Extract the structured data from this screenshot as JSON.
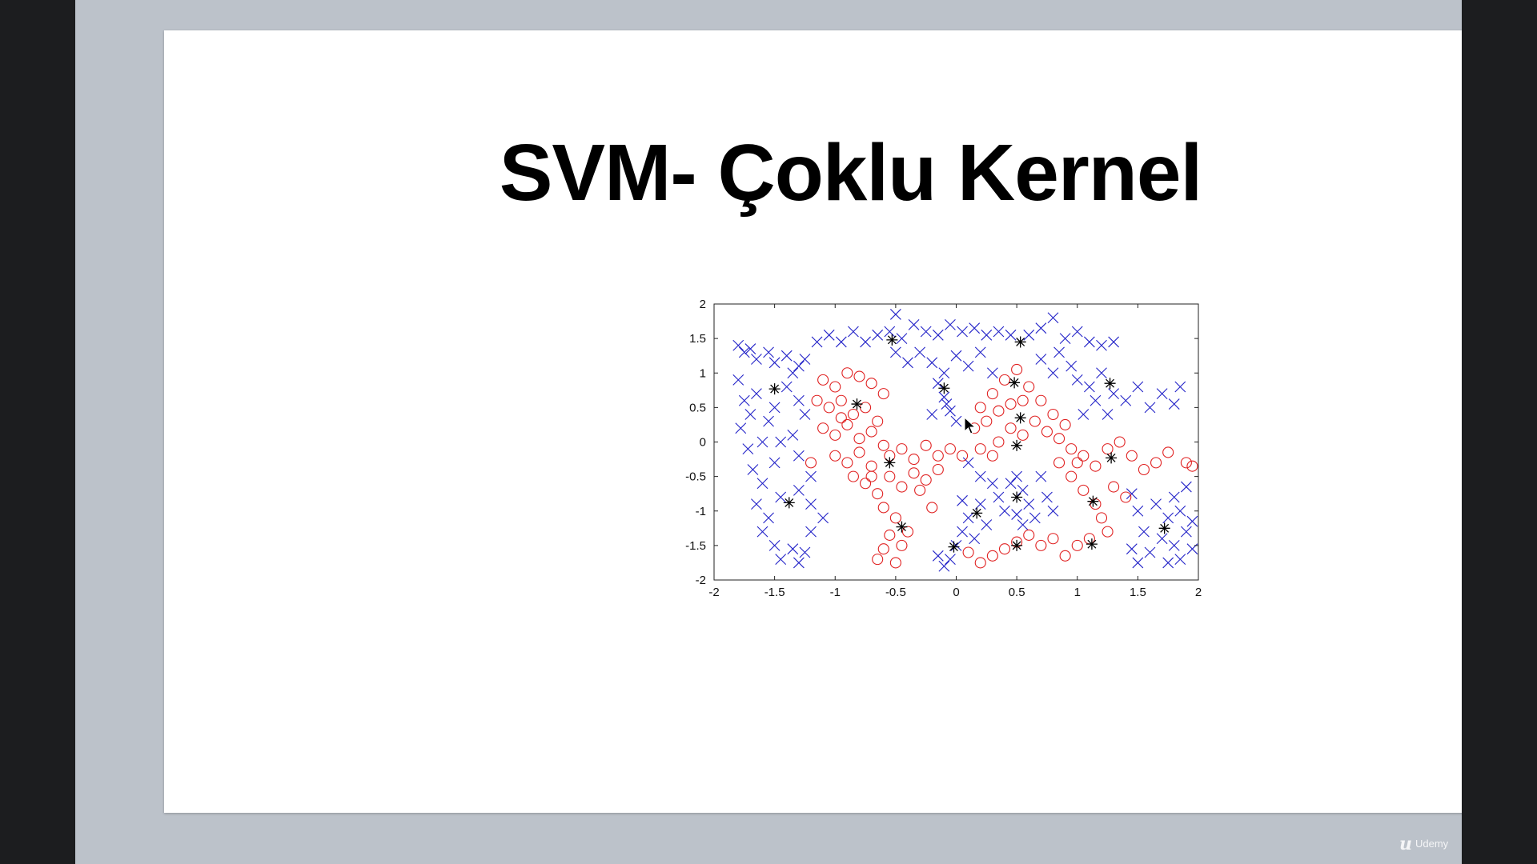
{
  "slide": {
    "title": "SVM- Çoklu Kernel"
  },
  "watermark": {
    "logo_glyph": "u",
    "brand": "Udemy"
  },
  "colors": {
    "class_x": "#2323c8",
    "class_o": "#e02020",
    "support_vector": "#000000"
  },
  "chart_data": {
    "type": "scatter",
    "title": "",
    "xlabel": "",
    "ylabel": "",
    "xlim": [
      -2,
      2
    ],
    "ylim": [
      -2,
      2
    ],
    "xticks": [
      "-2",
      "-1.5",
      "-1",
      "-0.5",
      "0",
      "0.5",
      "1",
      "1.5",
      "2"
    ],
    "yticks": [
      "2",
      "1.5",
      "1",
      "0.5",
      "0",
      "-0.5",
      "-1",
      "-1.5",
      "-2"
    ],
    "grid": false,
    "series": [
      {
        "marker": "x",
        "color": "#2323c8",
        "points": [
          [
            -1.8,
            1.4
          ],
          [
            -1.75,
            1.3
          ],
          [
            -1.7,
            1.35
          ],
          [
            -1.65,
            1.2
          ],
          [
            -1.55,
            1.3
          ],
          [
            -1.5,
            1.15
          ],
          [
            -1.4,
            1.25
          ],
          [
            -1.3,
            1.1
          ],
          [
            -1.25,
            1.2
          ],
          [
            -1.15,
            1.45
          ],
          [
            -1.05,
            1.55
          ],
          [
            -0.95,
            1.45
          ],
          [
            -0.85,
            1.6
          ],
          [
            -0.75,
            1.45
          ],
          [
            -0.65,
            1.55
          ],
          [
            -0.55,
            1.6
          ],
          [
            -0.5,
            1.85
          ],
          [
            -0.45,
            1.5
          ],
          [
            -0.35,
            1.7
          ],
          [
            -0.25,
            1.6
          ],
          [
            -0.15,
            1.55
          ],
          [
            -0.05,
            1.7
          ],
          [
            0.05,
            1.6
          ],
          [
            0.15,
            1.65
          ],
          [
            0.25,
            1.55
          ],
          [
            0.35,
            1.6
          ],
          [
            0.45,
            1.55
          ],
          [
            0.6,
            1.55
          ],
          [
            0.7,
            1.65
          ],
          [
            0.8,
            1.8
          ],
          [
            0.9,
            1.5
          ],
          [
            1.0,
            1.6
          ],
          [
            1.1,
            1.45
          ],
          [
            1.2,
            1.4
          ],
          [
            1.3,
            1.45
          ],
          [
            -1.8,
            0.9
          ],
          [
            -1.75,
            0.6
          ],
          [
            -1.7,
            0.4
          ],
          [
            -1.78,
            0.2
          ],
          [
            -1.72,
            -0.1
          ],
          [
            -1.68,
            -0.4
          ],
          [
            -1.6,
            -0.6
          ],
          [
            -1.65,
            -0.9
          ],
          [
            -1.55,
            -1.1
          ],
          [
            -1.6,
            -1.3
          ],
          [
            -1.5,
            -1.5
          ],
          [
            -1.45,
            -1.7
          ],
          [
            -1.35,
            -1.55
          ],
          [
            -1.3,
            -1.75
          ],
          [
            -1.25,
            -1.6
          ],
          [
            -1.2,
            -1.3
          ],
          [
            -1.1,
            -1.1
          ],
          [
            -1.2,
            -0.9
          ],
          [
            -1.3,
            -0.7
          ],
          [
            -1.45,
            -0.8
          ],
          [
            -1.5,
            -0.3
          ],
          [
            -1.45,
            0.0
          ],
          [
            -1.55,
            0.3
          ],
          [
            -1.5,
            0.5
          ],
          [
            -1.4,
            0.8
          ],
          [
            -1.3,
            0.6
          ],
          [
            -1.25,
            0.4
          ],
          [
            -1.35,
            0.1
          ],
          [
            -1.3,
            -0.2
          ],
          [
            -1.2,
            -0.5
          ],
          [
            -1.35,
            1.0
          ],
          [
            -1.6,
            0.0
          ],
          [
            -1.65,
            0.7
          ],
          [
            -0.5,
            1.3
          ],
          [
            -0.4,
            1.15
          ],
          [
            -0.3,
            1.3
          ],
          [
            -0.2,
            1.15
          ],
          [
            -0.1,
            1.0
          ],
          [
            0.0,
            1.25
          ],
          [
            0.1,
            1.1
          ],
          [
            0.2,
            1.3
          ],
          [
            0.3,
            1.0
          ],
          [
            -0.15,
            0.85
          ],
          [
            -0.1,
            0.65
          ],
          [
            -0.05,
            0.45
          ],
          [
            0.0,
            0.3
          ],
          [
            -0.2,
            0.4
          ],
          [
            -0.08,
            0.55
          ],
          [
            0.7,
            1.2
          ],
          [
            0.8,
            1.0
          ],
          [
            0.85,
            1.3
          ],
          [
            0.95,
            1.1
          ],
          [
            1.0,
            0.9
          ],
          [
            1.1,
            0.8
          ],
          [
            1.15,
            0.6
          ],
          [
            1.2,
            1.0
          ],
          [
            1.3,
            0.7
          ],
          [
            1.4,
            0.6
          ],
          [
            1.5,
            0.8
          ],
          [
            1.6,
            0.5
          ],
          [
            1.7,
            0.7
          ],
          [
            1.8,
            0.55
          ],
          [
            1.85,
            0.8
          ],
          [
            1.25,
            0.4
          ],
          [
            1.05,
            0.4
          ],
          [
            0.1,
            -0.3
          ],
          [
            0.2,
            -0.5
          ],
          [
            0.3,
            -0.6
          ],
          [
            0.35,
            -0.8
          ],
          [
            0.4,
            -1.0
          ],
          [
            0.2,
            -0.9
          ],
          [
            0.1,
            -1.1
          ],
          [
            0.05,
            -1.3
          ],
          [
            0.0,
            -1.5
          ],
          [
            -0.05,
            -1.7
          ],
          [
            -0.1,
            -1.8
          ],
          [
            0.15,
            -1.4
          ],
          [
            0.25,
            -1.2
          ],
          [
            0.45,
            -0.6
          ],
          [
            0.5,
            -0.5
          ],
          [
            0.55,
            -0.7
          ],
          [
            0.6,
            -0.9
          ],
          [
            0.65,
            -1.1
          ],
          [
            0.55,
            -1.2
          ],
          [
            0.75,
            -0.8
          ],
          [
            0.8,
            -1.0
          ],
          [
            0.7,
            -0.5
          ],
          [
            0.5,
            -1.05
          ],
          [
            -0.15,
            -1.65
          ],
          [
            0.05,
            -0.85
          ],
          [
            1.45,
            -0.75
          ],
          [
            1.5,
            -1.0
          ],
          [
            1.55,
            -1.3
          ],
          [
            1.45,
            -1.55
          ],
          [
            1.5,
            -1.75
          ],
          [
            1.6,
            -1.6
          ],
          [
            1.7,
            -1.4
          ],
          [
            1.75,
            -1.1
          ],
          [
            1.8,
            -0.8
          ],
          [
            1.85,
            -1.0
          ],
          [
            1.9,
            -1.3
          ],
          [
            1.95,
            -1.55
          ],
          [
            1.85,
            -1.7
          ],
          [
            1.75,
            -1.75
          ],
          [
            1.65,
            -0.9
          ],
          [
            1.9,
            -0.65
          ],
          [
            1.95,
            -1.15
          ],
          [
            1.8,
            -1.5
          ]
        ]
      },
      {
        "marker": "o",
        "color": "#e02020",
        "points": [
          [
            -1.1,
            0.9
          ],
          [
            -1.0,
            0.8
          ],
          [
            -0.9,
            1.0
          ],
          [
            -0.8,
            0.95
          ],
          [
            -0.7,
            0.85
          ],
          [
            -0.6,
            0.7
          ],
          [
            -1.15,
            0.6
          ],
          [
            -1.05,
            0.5
          ],
          [
            -0.95,
            0.6
          ],
          [
            -0.85,
            0.4
          ],
          [
            -0.75,
            0.5
          ],
          [
            -0.65,
            0.3
          ],
          [
            -1.1,
            0.2
          ],
          [
            -1.0,
            0.1
          ],
          [
            -0.9,
            0.25
          ],
          [
            -0.8,
            0.05
          ],
          [
            -0.7,
            0.15
          ],
          [
            -0.6,
            -0.05
          ],
          [
            -1.0,
            -0.2
          ],
          [
            -0.9,
            -0.3
          ],
          [
            -0.8,
            -0.15
          ],
          [
            -0.7,
            -0.35
          ],
          [
            -0.55,
            -0.2
          ],
          [
            -0.45,
            -0.1
          ],
          [
            -0.35,
            -0.25
          ],
          [
            -0.25,
            -0.05
          ],
          [
            -0.15,
            -0.2
          ],
          [
            -0.05,
            -0.1
          ],
          [
            0.05,
            -0.2
          ],
          [
            -0.75,
            -0.6
          ],
          [
            -0.65,
            -0.75
          ],
          [
            -0.55,
            -0.5
          ],
          [
            -0.45,
            -0.65
          ],
          [
            -0.35,
            -0.45
          ],
          [
            -0.25,
            -0.55
          ],
          [
            -0.6,
            -0.95
          ],
          [
            -0.5,
            -1.1
          ],
          [
            -0.55,
            -1.35
          ],
          [
            -0.45,
            -1.5
          ],
          [
            -0.6,
            -1.55
          ],
          [
            -0.65,
            -1.7
          ],
          [
            -0.5,
            -1.75
          ],
          [
            -0.4,
            -1.3
          ],
          [
            -0.15,
            -0.4
          ],
          [
            -1.2,
            -0.3
          ],
          [
            -0.85,
            -0.5
          ],
          [
            -0.95,
            0.35
          ],
          [
            -0.7,
            -0.5
          ],
          [
            -0.3,
            -0.7
          ],
          [
            -0.2,
            -0.95
          ],
          [
            0.2,
            0.5
          ],
          [
            0.3,
            0.7
          ],
          [
            0.4,
            0.9
          ],
          [
            0.5,
            1.05
          ],
          [
            0.6,
            0.8
          ],
          [
            0.7,
            0.6
          ],
          [
            0.8,
            0.4
          ],
          [
            0.9,
            0.25
          ],
          [
            0.25,
            0.3
          ],
          [
            0.35,
            0.45
          ],
          [
            0.45,
            0.2
          ],
          [
            0.55,
            0.1
          ],
          [
            0.65,
            0.3
          ],
          [
            0.75,
            0.15
          ],
          [
            0.85,
            0.05
          ],
          [
            0.95,
            -0.1
          ],
          [
            1.05,
            -0.2
          ],
          [
            1.15,
            -0.35
          ],
          [
            1.25,
            -0.1
          ],
          [
            1.35,
            0.0
          ],
          [
            1.45,
            -0.2
          ],
          [
            1.55,
            -0.4
          ],
          [
            1.65,
            -0.3
          ],
          [
            1.75,
            -0.15
          ],
          [
            1.9,
            -0.3
          ],
          [
            1.95,
            -0.35
          ],
          [
            0.35,
            0.0
          ],
          [
            0.2,
            -0.1
          ],
          [
            0.3,
            -0.2
          ],
          [
            0.15,
            0.2
          ],
          [
            0.85,
            -0.3
          ],
          [
            0.95,
            -0.5
          ],
          [
            1.05,
            -0.7
          ],
          [
            1.15,
            -0.9
          ],
          [
            1.2,
            -1.1
          ],
          [
            1.25,
            -1.3
          ],
          [
            1.1,
            -1.4
          ],
          [
            1.0,
            -1.5
          ],
          [
            0.9,
            -1.65
          ],
          [
            0.8,
            -1.4
          ],
          [
            0.7,
            -1.5
          ],
          [
            0.6,
            -1.35
          ],
          [
            0.5,
            -1.45
          ],
          [
            0.4,
            -1.55
          ],
          [
            0.3,
            -1.65
          ],
          [
            0.2,
            -1.75
          ],
          [
            0.1,
            -1.6
          ],
          [
            1.3,
            -0.65
          ],
          [
            1.4,
            -0.8
          ],
          [
            1.0,
            -0.3
          ],
          [
            0.55,
            0.6
          ],
          [
            0.45,
            0.55
          ]
        ]
      },
      {
        "marker": "*",
        "color": "#000000",
        "points": [
          [
            -0.53,
            1.48
          ],
          [
            0.53,
            1.45
          ],
          [
            -1.5,
            0.77
          ],
          [
            -0.1,
            0.78
          ],
          [
            0.48,
            0.86
          ],
          [
            1.27,
            0.85
          ],
          [
            -0.82,
            0.55
          ],
          [
            0.53,
            0.35
          ],
          [
            -0.55,
            -0.3
          ],
          [
            0.5,
            -0.05
          ],
          [
            1.28,
            -0.23
          ],
          [
            -1.38,
            -0.88
          ],
          [
            0.5,
            -0.8
          ],
          [
            1.13,
            -0.86
          ],
          [
            0.17,
            -1.03
          ],
          [
            -0.45,
            -1.23
          ],
          [
            1.72,
            -1.25
          ],
          [
            -0.02,
            -1.52
          ],
          [
            0.5,
            -1.5
          ],
          [
            1.12,
            -1.48
          ]
        ]
      }
    ]
  }
}
